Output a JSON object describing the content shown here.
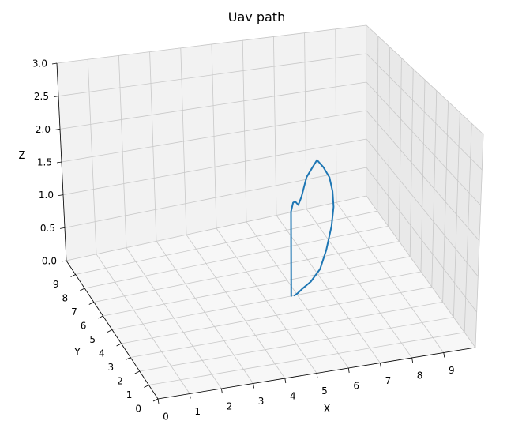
{
  "chart_data": {
    "type": "line",
    "projection": "3d",
    "title": "Uav path",
    "xlabel": "X",
    "ylabel": "Y",
    "zlabel": "Z",
    "xlim": [
      0,
      10
    ],
    "ylim": [
      0,
      10
    ],
    "zlim": [
      0,
      3
    ],
    "xticks": [
      "0",
      "1",
      "2",
      "3",
      "4",
      "5",
      "6",
      "7",
      "8",
      "9"
    ],
    "yticks": [
      "0",
      "1",
      "2",
      "3",
      "4",
      "5",
      "6",
      "7",
      "8",
      "9"
    ],
    "zticks": [
      "0.0",
      "0.5",
      "1.0",
      "1.5",
      "2.0",
      "2.5",
      "3.0"
    ],
    "grid": true,
    "series": [
      {
        "color": "#1f77b4",
        "x": [
          5.8,
          5.8,
          5.9,
          6.0,
          6.1,
          6.2,
          6.4,
          6.6,
          6.8,
          7.0,
          7.2,
          7.3,
          7.3,
          7.2,
          7.0,
          6.8,
          6.5,
          6.2,
          6.0,
          5.9
        ],
        "y": [
          5.0,
          5.0,
          5.1,
          5.2,
          5.2,
          5.2,
          5.3,
          5.4,
          5.5,
          5.5,
          5.5,
          5.5,
          5.4,
          5.3,
          5.2,
          5.2,
          5.2,
          5.1,
          5.0,
          5.0
        ],
        "z": [
          0.0,
          1.1,
          1.2,
          1.2,
          1.15,
          1.25,
          1.5,
          1.6,
          1.7,
          1.6,
          1.45,
          1.25,
          1.05,
          0.8,
          0.5,
          0.25,
          0.1,
          0.05,
          0.02,
          0.0
        ]
      }
    ]
  }
}
